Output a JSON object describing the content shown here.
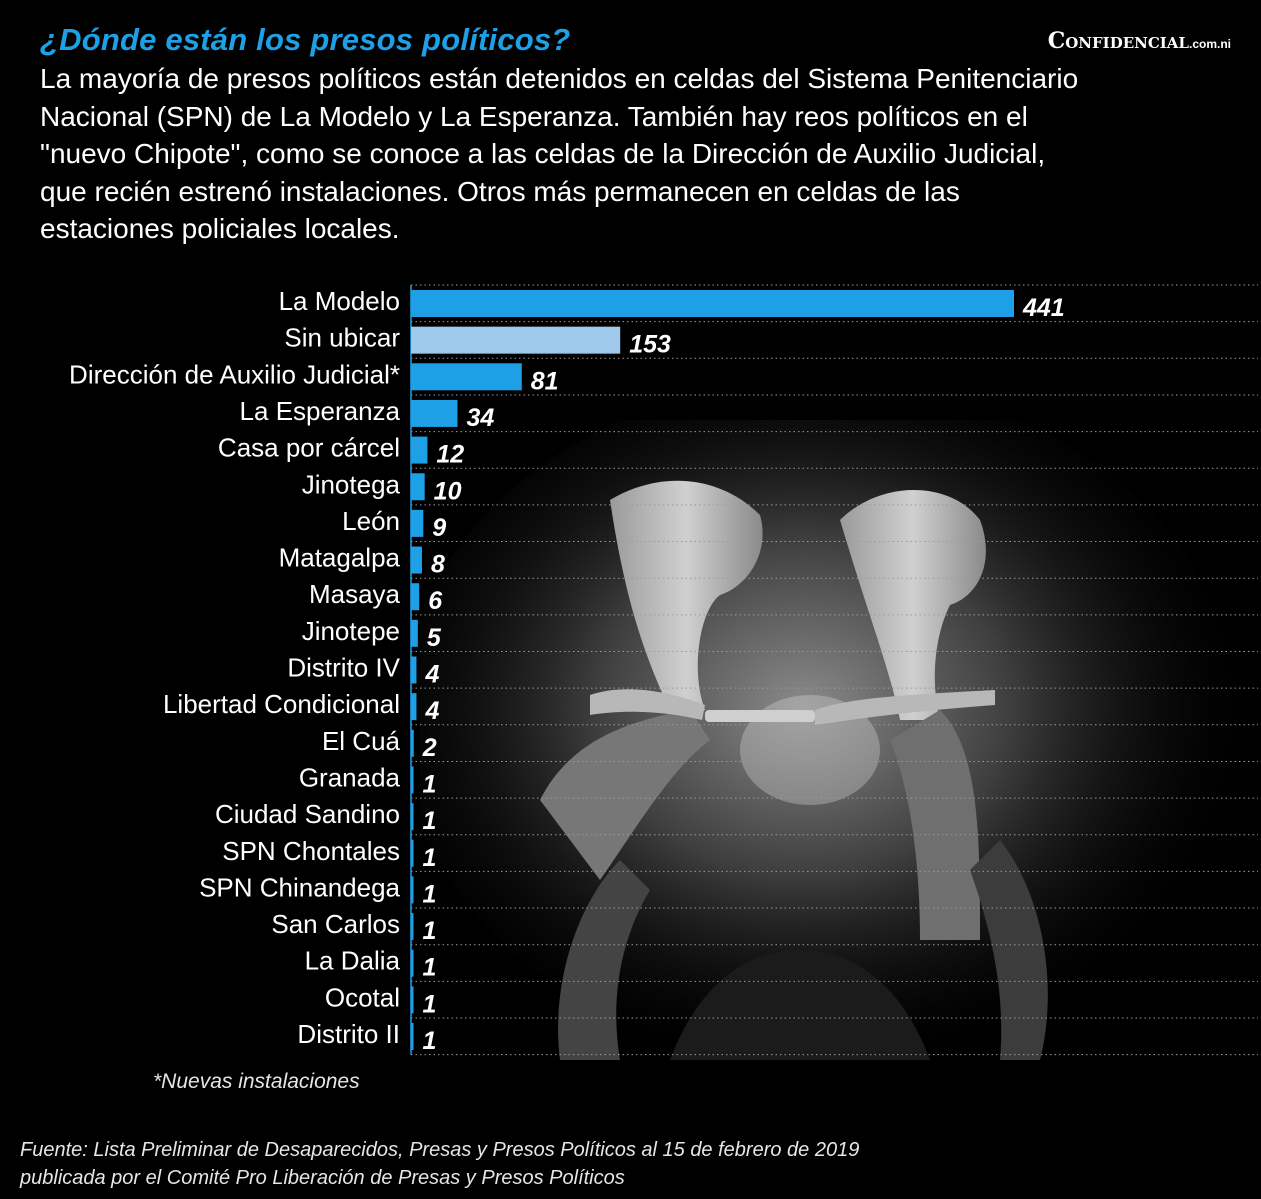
{
  "header": {
    "title": "¿Dónde están los presos políticos?",
    "brand": "Confidencial",
    "brand_tld": ".com.ni",
    "subtitle": "La mayoría de presos políticos están detenidos en celdas del Sistema Penitenciario Nacional (SPN) de La Modelo y La Esperanza. También hay reos políticos en el \"nuevo Chipote\", como se conoce a las celdas de la Dirección de Auxilio Judicial, que recién estrenó instalaciones. Otros más permanecen en celdas de las estaciones policiales locales."
  },
  "colors": {
    "title": "#1ea0e6",
    "bar": "#1ea0e6",
    "bar_highlight": "#9ec9ec",
    "background": "#000000",
    "gridline": "#9a9a9a"
  },
  "chart_data": {
    "type": "bar",
    "orientation": "horizontal",
    "categories": [
      "La Modelo",
      "Sin ubicar",
      "Dirección de Auxilio Judicial*",
      "La Esperanza",
      "Casa por cárcel",
      "Jinotega",
      "León",
      "Matagalpa",
      "Masaya",
      "Jinotepe",
      "Distrito IV",
      "Libertad Condicional",
      "El Cuá",
      "Granada",
      "Ciudad Sandino",
      "SPN Chontales",
      "SPN Chinandega",
      "San Carlos",
      "La Dalia",
      "Ocotal",
      "Distrito II"
    ],
    "values": [
      441,
      153,
      81,
      34,
      12,
      10,
      9,
      8,
      6,
      5,
      4,
      4,
      2,
      1,
      1,
      1,
      1,
      1,
      1,
      1,
      1
    ],
    "highlight_category": "Sin ubicar",
    "xlim": [
      0,
      441
    ],
    "grid": "dotted horizontal",
    "x_axis_visible": false
  },
  "footnote": "*Nuevas instalaciones",
  "source": {
    "line1": "Fuente: Lista Preliminar de Desaparecidos, Presas y Presos Políticos al 15 de febrero de 2019",
    "line2": "publicada por el Comité Pro Liberación de Presas y Presos Políticos"
  }
}
